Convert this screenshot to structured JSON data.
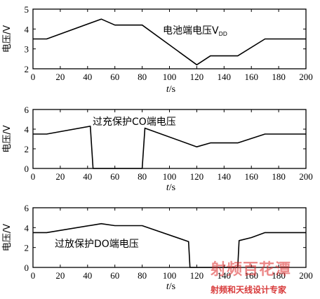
{
  "chart_data": [
    {
      "type": "line",
      "annotation": "电池端电压V",
      "annotation_sub": "DD",
      "ylabel": "电压/V",
      "xlabel_var": "t",
      "xlabel_unit": "/s",
      "xlim": [
        0,
        200
      ],
      "ylim": [
        2,
        5
      ],
      "xticks": [
        0,
        20,
        40,
        60,
        80,
        100,
        120,
        140,
        160,
        180,
        200
      ],
      "yticks": [
        2,
        3,
        4,
        5
      ],
      "series": [
        {
          "x": [
            0,
            10,
            50,
            60,
            80,
            120,
            130,
            150,
            170,
            200
          ],
          "y": [
            3.5,
            3.5,
            4.5,
            4.2,
            4.2,
            2.2,
            2.65,
            2.65,
            3.5,
            3.5
          ]
        }
      ]
    },
    {
      "type": "line",
      "annotation": "过充保护CO端电压",
      "ylabel": "电压/V",
      "xlabel_var": "t",
      "xlabel_unit": "/s",
      "xlim": [
        0,
        200
      ],
      "ylim": [
        0,
        6
      ],
      "xticks": [
        0,
        20,
        40,
        60,
        80,
        100,
        120,
        140,
        160,
        180,
        200
      ],
      "yticks": [
        0,
        2,
        4,
        6
      ],
      "series": [
        {
          "x": [
            0,
            10,
            42,
            44,
            80,
            82,
            120,
            130,
            150,
            170,
            200
          ],
          "y": [
            3.5,
            3.5,
            4.3,
            0,
            0,
            4.1,
            2.2,
            2.6,
            2.6,
            3.5,
            3.5
          ]
        }
      ]
    },
    {
      "type": "line",
      "annotation": "过放保护DO端电压",
      "ylabel": "电压/V",
      "xlabel_var": "t",
      "xlabel_unit": "/s",
      "xlim": [
        0,
        200
      ],
      "ylim": [
        0,
        6
      ],
      "xticks": [
        0,
        20,
        40,
        60,
        80,
        100,
        120,
        140,
        160,
        180,
        200
      ],
      "yticks": [
        0,
        2,
        4,
        6
      ],
      "series": [
        {
          "x": [
            0,
            10,
            50,
            60,
            80,
            114,
            115,
            150,
            151,
            160,
            170,
            200
          ],
          "y": [
            3.5,
            3.5,
            4.4,
            4.2,
            4.2,
            2.6,
            0,
            0,
            2.7,
            3.0,
            3.5,
            3.5
          ]
        }
      ]
    }
  ],
  "watermark": {
    "title": "射频百花潭",
    "subtitle": "射频和天线设计专家"
  }
}
